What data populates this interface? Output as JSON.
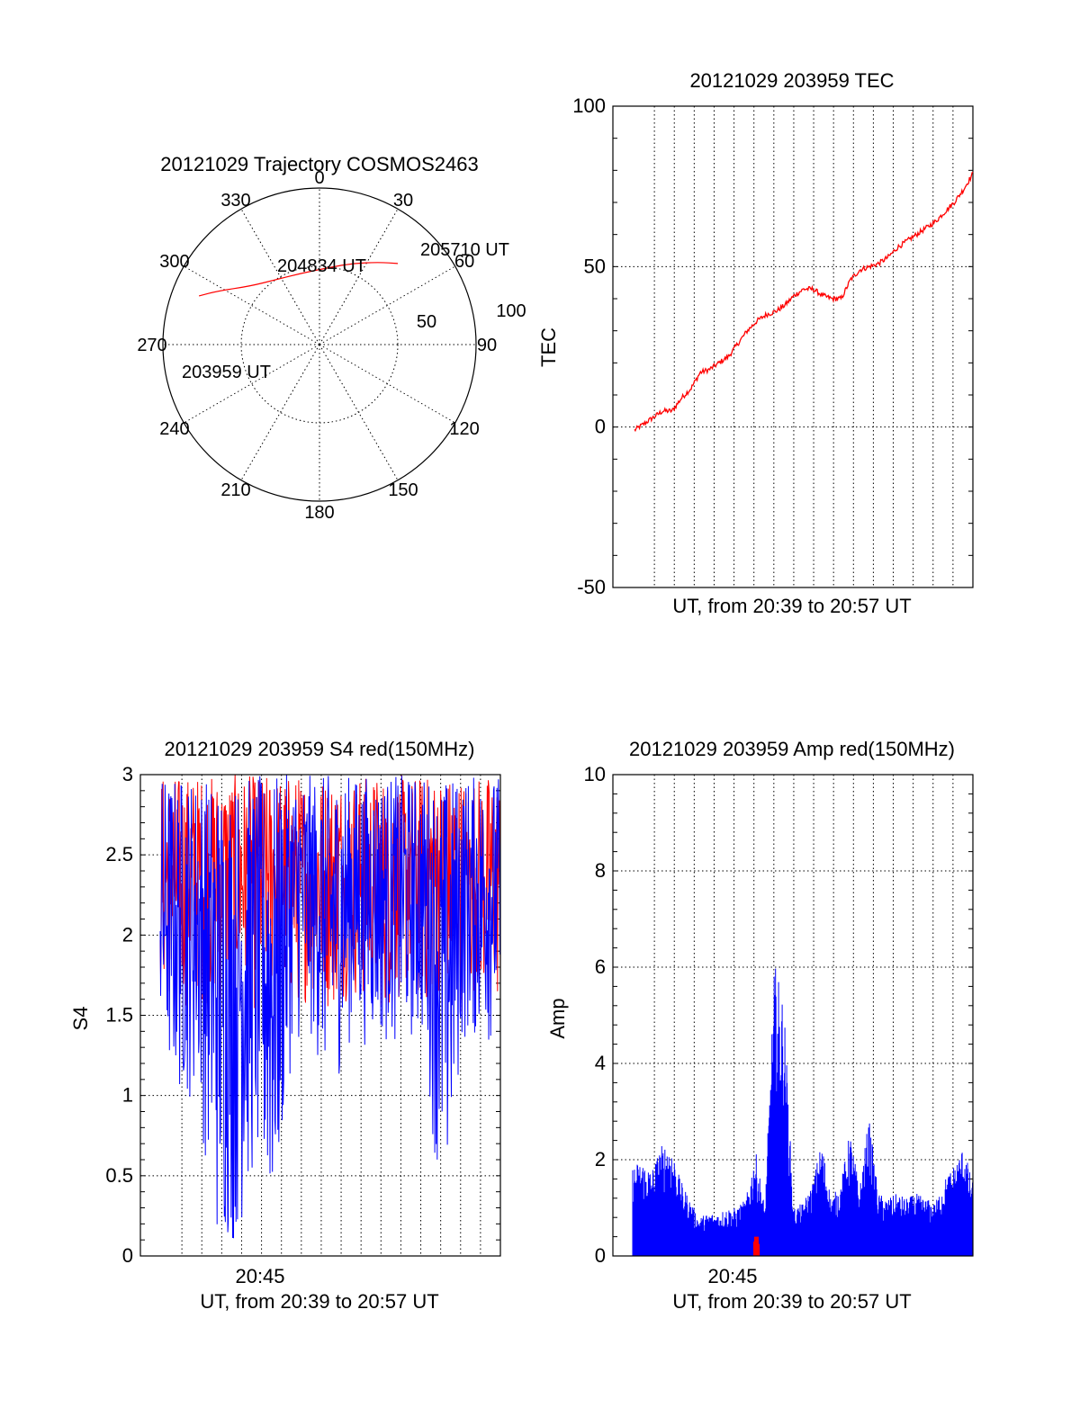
{
  "chart_data": [
    {
      "type": "polar",
      "title": "20121029 Trajectory COSMOS2463",
      "azimuth_labels": [
        "0",
        "30",
        "60",
        "90",
        "120",
        "150",
        "180",
        "210",
        "240",
        "270",
        "300",
        "330"
      ],
      "radial_labels": [
        "50",
        "100"
      ],
      "trajectory": {
        "color": "#ff0000",
        "points": [
          {
            "az": 292,
            "r": 83
          },
          {
            "az": 298,
            "r": 73
          },
          {
            "az": 310,
            "r": 58
          },
          {
            "az": 326,
            "r": 50
          },
          {
            "az": 345,
            "r": 47
          },
          {
            "az": 5,
            "r": 49
          },
          {
            "az": 22,
            "r": 56
          },
          {
            "az": 36,
            "r": 65
          },
          {
            "az": 44,
            "r": 72
          }
        ],
        "time_labels": [
          "203959 UT",
          "204834 UT",
          "205710 UT"
        ]
      }
    },
    {
      "type": "line",
      "title": "20121029 203959 TEC",
      "xlabel": "UT, from 20:39 to 20:57 UT",
      "ylabel": "TEC",
      "ylim": [
        -50,
        100
      ],
      "yticks": [
        "-50",
        "0",
        "50",
        "100"
      ],
      "series": [
        {
          "color": "#ff0000",
          "x": [
            0,
            0.5,
            1,
            1.5,
            2,
            2.5,
            3,
            3.5,
            4,
            4.5,
            5,
            5.5,
            6,
            6.5,
            7,
            7.5,
            8,
            8.5,
            9,
            9.5,
            10,
            10.5,
            11,
            11.5,
            12,
            12.5,
            13,
            13.5,
            14,
            14.5,
            15,
            15.5,
            16,
            16.5,
            17,
            17.5,
            18
          ],
          "y": [
            -1,
            1,
            3,
            5,
            5,
            9,
            12,
            17,
            18,
            20,
            22,
            26,
            30,
            33,
            35,
            36,
            38,
            41,
            43,
            43,
            41,
            40,
            40,
            46,
            49,
            50,
            51,
            53,
            56,
            58,
            60,
            62,
            64,
            67,
            70,
            74,
            79
          ]
        }
      ]
    },
    {
      "type": "line",
      "title": "20121029 203959 S4 red(150MHz)",
      "xlabel": "UT, from 20:39 to 20:57 UT",
      "ylabel": "S4",
      "ylim": [
        0,
        3
      ],
      "yticks": [
        "0",
        "0.5",
        "1",
        "1.5",
        "2",
        "2.5",
        "3"
      ],
      "xtick_label": "20:45",
      "series": [
        {
          "color": "#ff0000",
          "x": [
            0,
            1,
            2,
            3,
            4,
            5,
            6,
            7,
            8,
            9,
            10,
            11,
            12,
            13,
            14,
            15,
            16,
            17,
            18
          ],
          "y_low": [
            1.6,
            1.5,
            1.6,
            1.5,
            1.6,
            1.5,
            1.6,
            1.5,
            1.6,
            1.5,
            1.6,
            1.5,
            1.5,
            1.6,
            1.5,
            1.6,
            1.5,
            1.6,
            1.5
          ],
          "y_high": [
            3,
            3,
            3,
            3,
            3,
            3,
            3,
            3,
            3,
            3,
            3,
            3,
            3,
            3,
            3,
            3,
            3,
            3,
            3
          ]
        },
        {
          "color": "#0000ff",
          "x": [
            0,
            1,
            2,
            3,
            4,
            5,
            6,
            7,
            8,
            9,
            10,
            11,
            12,
            13,
            14,
            15,
            16,
            17,
            18
          ],
          "y_low": [
            1.1,
            0.95,
            0.95,
            0,
            0,
            0.45,
            0,
            1.3,
            1.3,
            0.95,
            1.3,
            1.3,
            1.3,
            1.3,
            1.3,
            0,
            1.3,
            1.3,
            1.3
          ],
          "y_high": [
            3,
            3,
            3,
            3,
            3,
            3,
            3,
            3,
            3,
            3,
            3,
            3,
            3,
            3,
            3,
            3,
            3,
            3,
            3
          ]
        }
      ]
    },
    {
      "type": "bar",
      "title": "20121029 203959 Amp red(150MHz)",
      "xlabel": "UT, from 20:39 to 20:57 UT",
      "ylabel": "Amp",
      "ylim": [
        0,
        10
      ],
      "yticks": [
        "0",
        "2",
        "4",
        "6",
        "8",
        "10"
      ],
      "xtick_label": "20:45",
      "series": [
        {
          "color": "#0000ff",
          "x": [
            0,
            0.5,
            1,
            1.5,
            2,
            2.5,
            3,
            3.5,
            4,
            4.5,
            5,
            5.5,
            6,
            6.5,
            7,
            7.5,
            8,
            8.5,
            9,
            9.5,
            10,
            10.5,
            11,
            11.5,
            12,
            12.5,
            13,
            13.5,
            14,
            14.5,
            15,
            15.5,
            16,
            16.5,
            17,
            17.5,
            18
          ],
          "y": [
            1.9,
            2.0,
            1.8,
            2.3,
            2.4,
            1.6,
            1.2,
            0.8,
            0.9,
            0.9,
            1.0,
            1.0,
            1.2,
            2.2,
            1.0,
            6.1,
            5.3,
            1.0,
            1.1,
            1.5,
            2.4,
            1.2,
            1.5,
            2.6,
            1.4,
            2.9,
            1.3,
            1.2,
            1.3,
            1.2,
            1.3,
            1.2,
            1.1,
            1.6,
            1.9,
            2.3,
            1.5
          ]
        },
        {
          "color": "#ff0000",
          "x": [
            6.5,
            6.55,
            6.6
          ],
          "y": [
            0.3,
            0.4,
            0.25
          ]
        }
      ]
    }
  ]
}
